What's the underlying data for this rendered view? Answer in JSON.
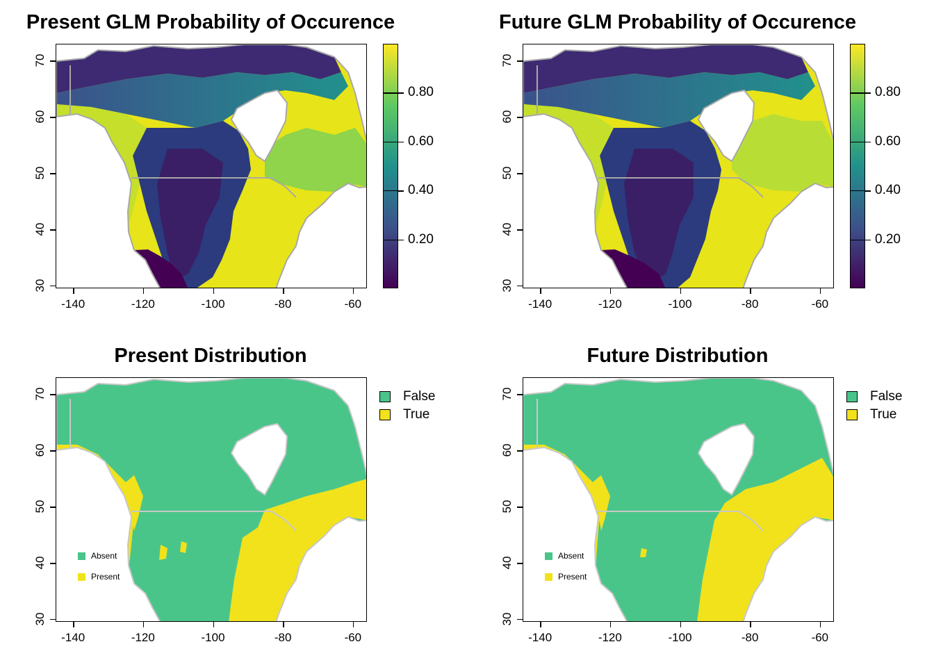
{
  "colors": {
    "viridis_stops": [
      "#440154",
      "#3b528b",
      "#21918c",
      "#5ec962",
      "#fde725"
    ],
    "absent": "#4ac58a",
    "present": "#f1e21c",
    "border": "#a8a8a8",
    "background": "#ffffff"
  },
  "axes": {
    "x": {
      "range": [
        -145,
        -56
      ],
      "ticks": [
        -140,
        -120,
        -100,
        -80,
        -60
      ],
      "tick_labels": [
        "-140",
        "-120",
        "-100",
        "-80",
        "-60"
      ]
    },
    "y": {
      "range": [
        29.5,
        73
      ],
      "ticks": [
        30,
        40,
        50,
        60,
        70
      ],
      "tick_labels": [
        "30",
        "40",
        "50",
        "60",
        "70"
      ]
    }
  },
  "colorbar": {
    "range": [
      0,
      1
    ],
    "ticks": [
      0.2,
      0.4,
      0.6,
      0.8
    ],
    "tick_labels": [
      "0.20",
      "0.40",
      "0.60",
      "0.80"
    ]
  },
  "panels": {
    "present_glm": {
      "title": "Present GLM Probability of Occurence",
      "type": "probability"
    },
    "future_glm": {
      "title": "Future GLM Probability of Occurence",
      "type": "probability"
    },
    "present_dist": {
      "title": "Present Distribution",
      "type": "binary"
    },
    "future_dist": {
      "title": "Future Distribution",
      "type": "binary"
    }
  },
  "legend": {
    "false_label": "False",
    "true_label": "True"
  },
  "inset_legend": {
    "absent_label": "Absent",
    "present_label": "Present"
  }
}
